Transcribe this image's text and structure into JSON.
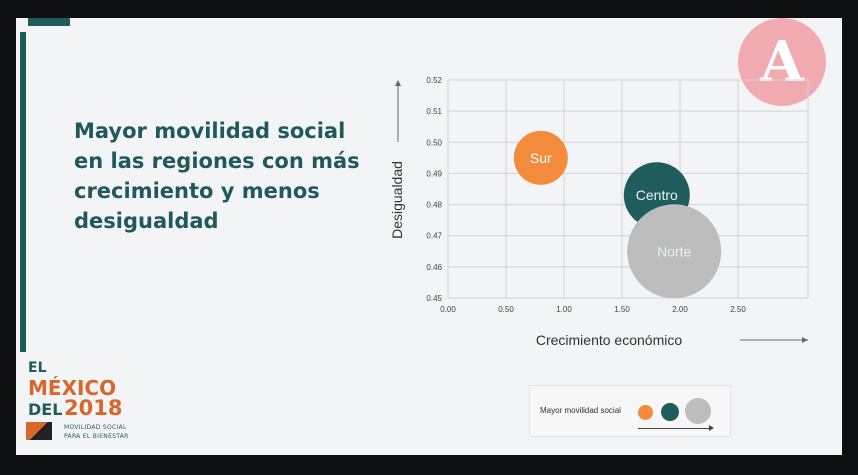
{
  "slide": {
    "title_lines": [
      "Mayor movilidad social",
      "en las regiones con más",
      "crecimiento y menos",
      "desigualdad"
    ],
    "logo_letter": "A"
  },
  "branding": {
    "el": "EL",
    "mexico": "MÉXICO",
    "del": "DEL",
    "year": "2018",
    "tagline1": "MOVILIDAD SOCIAL",
    "tagline2": "PARA EL BIENESTAR"
  },
  "legend": {
    "label": "Mayor movilidad social",
    "colors": [
      "#f28c3c",
      "#1f5d5c",
      "#bdbdbd"
    ]
  },
  "chart_data": {
    "type": "scatter",
    "xlabel": "Crecimiento económico",
    "ylabel": "Desigualdad",
    "xlim": [
      0,
      3.0
    ],
    "ylim": [
      0.45,
      0.52
    ],
    "xticks": [
      "0.00",
      "0.50",
      "1.00",
      "1.50",
      "2.00",
      "2.50"
    ],
    "yticks": [
      "0.45",
      "0.46",
      "0.47",
      "0.48",
      "0.49",
      "0.50",
      "0.51",
      "0.52"
    ],
    "grid": true,
    "points": [
      {
        "label": "Sur",
        "x": 0.8,
        "y": 0.495,
        "size": 1,
        "color": "#f28c3c"
      },
      {
        "label": "Centro",
        "x": 1.8,
        "y": 0.483,
        "size": 2,
        "color": "#1f5d5c"
      },
      {
        "label": "Norte",
        "x": 1.95,
        "y": 0.465,
        "size": 3,
        "color": "#bdbdbd"
      }
    ]
  }
}
